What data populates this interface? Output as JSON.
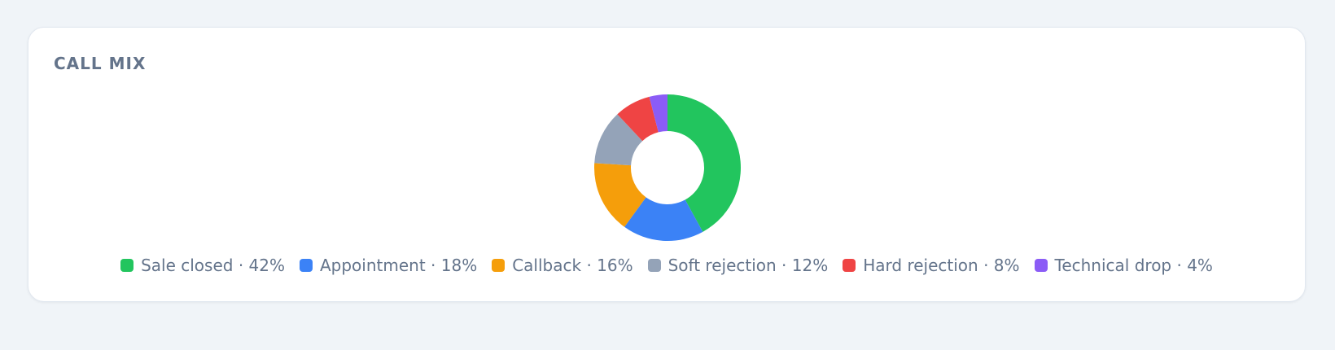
{
  "chart_data": {
    "type": "donut",
    "title": "CALL MIX",
    "categories": [
      "Sale closed",
      "Appointment",
      "Callback",
      "Soft rejection",
      "Hard rejection",
      "Technical drop"
    ],
    "values": [
      42,
      18,
      16,
      12,
      8,
      4
    ],
    "value_labels": [
      "42%",
      "18%",
      "16%",
      "12%",
      "8%",
      "4%"
    ],
    "separator": "·",
    "colors": [
      "#22c55e",
      "#3b82f6",
      "#f59e0b",
      "#94a3b8",
      "#ef4444",
      "#8b5cf6"
    ]
  }
}
